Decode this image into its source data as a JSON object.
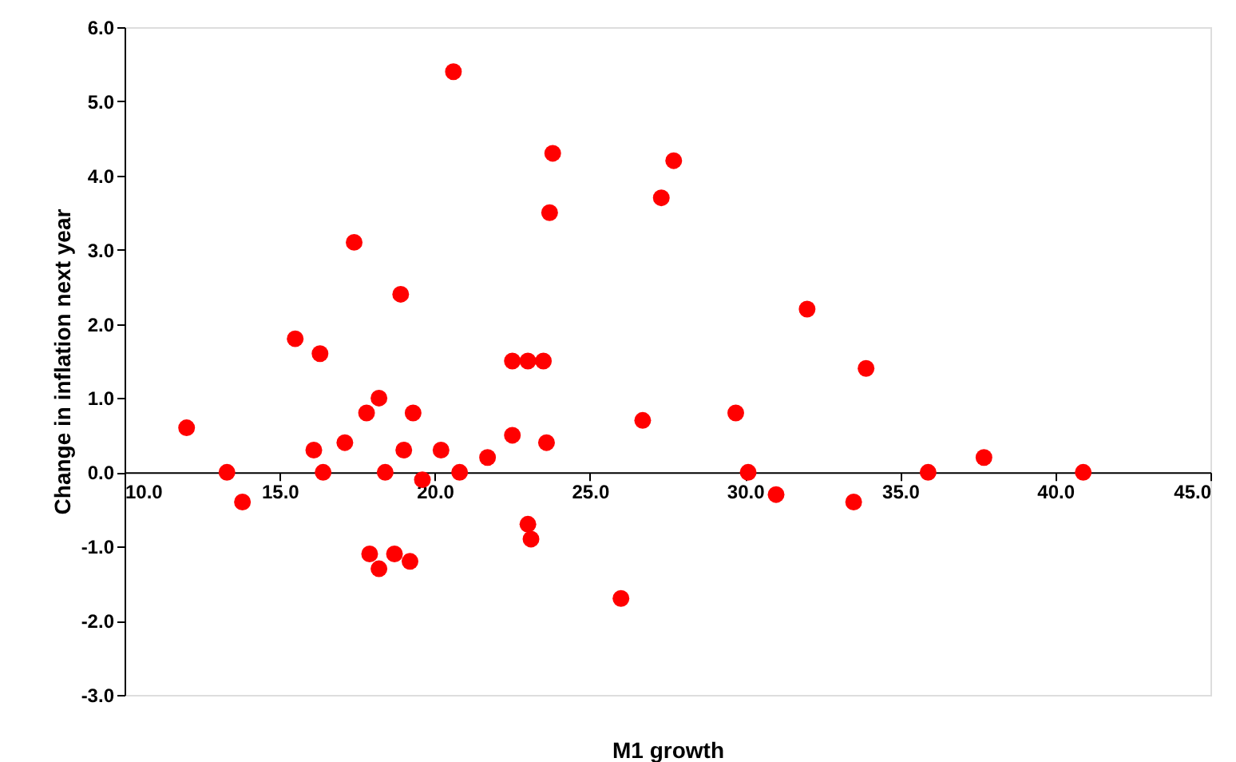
{
  "chart_data": {
    "type": "scatter",
    "xlabel": "M1 growth",
    "ylabel": "Change in inflation next year",
    "x": [
      12.0,
      13.3,
      13.8,
      15.5,
      16.1,
      16.3,
      16.4,
      17.1,
      17.4,
      17.8,
      17.9,
      18.2,
      18.2,
      18.4,
      18.9,
      18.7,
      19.0,
      19.2,
      19.3,
      19.6,
      20.2,
      20.6,
      20.8,
      21.7,
      22.5,
      22.5,
      23.0,
      23.0,
      23.1,
      23.5,
      23.6,
      23.7,
      23.8,
      26.0,
      26.7,
      27.3,
      27.7,
      29.7,
      30.1,
      31.0,
      32.0,
      33.5,
      33.9,
      35.9,
      37.7,
      40.9
    ],
    "series": [
      {
        "color": "#ff0000",
        "values": [
          0.6,
          0.0,
          -0.4,
          1.8,
          0.3,
          1.6,
          0.0,
          0.4,
          3.1,
          0.8,
          -1.1,
          1.0,
          -1.3,
          0.0,
          2.4,
          -1.1,
          0.3,
          -1.2,
          0.8,
          -0.1,
          0.3,
          5.4,
          0.0,
          0.2,
          1.5,
          0.5,
          1.5,
          -0.7,
          -0.9,
          1.5,
          0.4,
          3.5,
          4.3,
          -1.7,
          0.7,
          3.7,
          4.2,
          0.8,
          0.0,
          -0.3,
          2.2,
          -0.4,
          1.4,
          0.0,
          0.2,
          0.0
        ]
      }
    ],
    "marker": "circle",
    "grid": false,
    "xlim": [
      10,
      45
    ],
    "ylim": [
      -3,
      6
    ],
    "xticks": [
      {
        "value": 10,
        "label": "10.0"
      },
      {
        "value": 15,
        "label": "15.0"
      },
      {
        "value": 20,
        "label": "20.0"
      },
      {
        "value": 25,
        "label": "25.0"
      },
      {
        "value": 30,
        "label": "30.0"
      },
      {
        "value": 35,
        "label": "35.0"
      },
      {
        "value": 40,
        "label": "40.0"
      },
      {
        "value": 45,
        "label": "45.0"
      }
    ],
    "yticks": [
      {
        "value": -3,
        "label": "-3.0"
      },
      {
        "value": -2,
        "label": "-2.0"
      },
      {
        "value": -1,
        "label": "-1.0"
      },
      {
        "value": 0,
        "label": "0.0"
      },
      {
        "value": 1,
        "label": "1.0"
      },
      {
        "value": 2,
        "label": "2.0"
      },
      {
        "value": 3,
        "label": "3.0"
      },
      {
        "value": 4,
        "label": "4.0"
      },
      {
        "value": 5,
        "label": "5.0"
      },
      {
        "value": 6,
        "label": "6.0"
      }
    ]
  }
}
